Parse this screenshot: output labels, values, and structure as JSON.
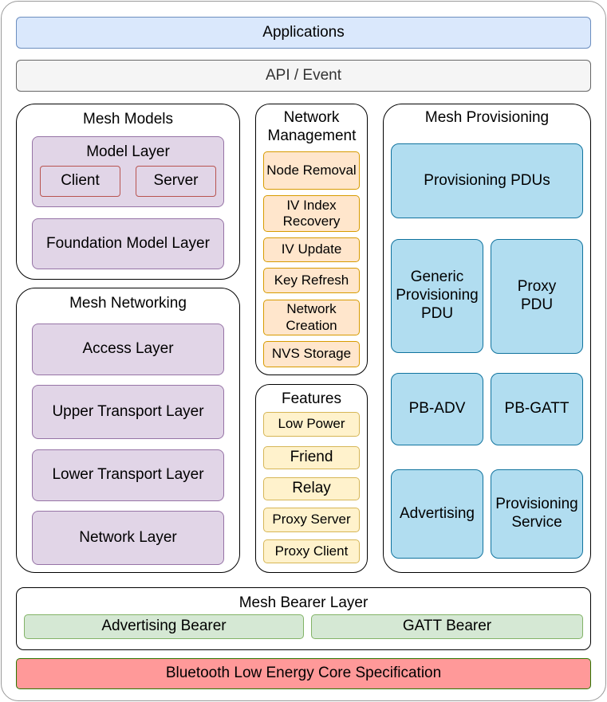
{
  "applications": "Applications",
  "api": "API / Event",
  "mesh_models": {
    "title": "Mesh Models",
    "model_layer": "Model Layer",
    "client": "Client",
    "server": "Server",
    "foundation": "Foundation Model Layer"
  },
  "mesh_networking": {
    "title": "Mesh Networking",
    "layers": [
      "Access Layer",
      "Upper Transport Layer",
      "Lower Transport Layer",
      "Network Layer"
    ]
  },
  "network_management": {
    "title": "Network Management",
    "items": [
      "Node Removal",
      "IV Index Recovery",
      "IV Update",
      "Key Refresh",
      "Network Creation",
      "NVS Storage"
    ]
  },
  "features": {
    "title": "Features",
    "items": [
      "Low Power",
      "Friend",
      "Relay",
      "Proxy Server",
      "Proxy Client"
    ]
  },
  "mesh_provisioning": {
    "title": "Mesh Provisioning",
    "items": [
      "Provisioning PDUs",
      "Generic Provisioning PDU",
      "Proxy PDU",
      "PB-ADV",
      "PB-GATT",
      "Advertising",
      "Provisioning Service"
    ]
  },
  "bearer": {
    "title": "Mesh Bearer Layer",
    "items": [
      "Advertising Bearer",
      "GATT Bearer"
    ]
  },
  "ble_core": "Bluetooth Low Energy Core Specification",
  "colors": {
    "applications": "#dae8fc",
    "api": "#f5f5f5",
    "models": "#e1d5e7",
    "network_management": "#ffe6cc",
    "features": "#fff2cc",
    "provisioning": "#b1ddf0",
    "bearer": "#d5e8d4",
    "ble_core": "#ff9999"
  }
}
